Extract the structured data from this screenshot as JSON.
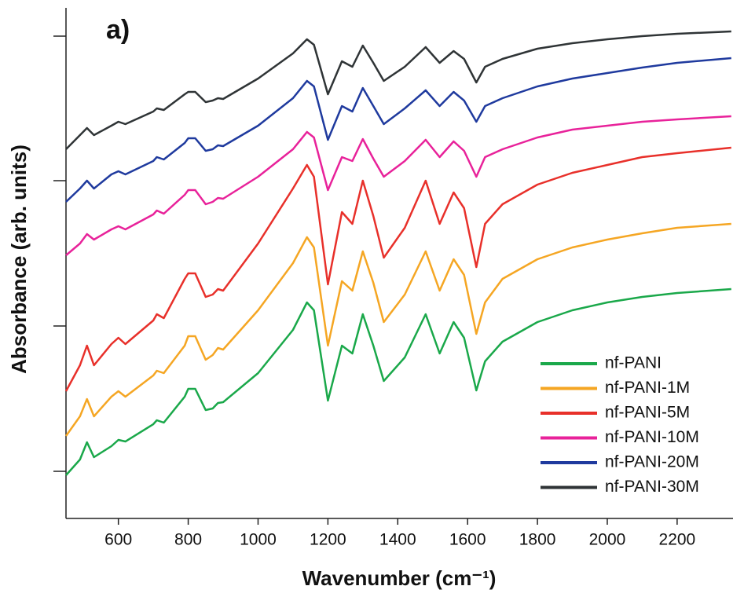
{
  "chart_data": {
    "type": "line",
    "annotation": "a)",
    "x_label": "Wavenumber (cm⁻¹)",
    "y_label": "Absorbance (arb. units)",
    "x": [
      450,
      490,
      510,
      530,
      580,
      600,
      620,
      700,
      710,
      730,
      790,
      800,
      820,
      850,
      870,
      885,
      900,
      1000,
      1100,
      1140,
      1160,
      1200,
      1240,
      1270,
      1300,
      1330,
      1360,
      1420,
      1480,
      1520,
      1560,
      1590,
      1625,
      1650,
      1700,
      1800,
      1900,
      2000,
      2100,
      2200,
      2355
    ],
    "series": [
      {
        "name": "nf-PANI",
        "color": "#1aa84a",
        "values": [
          55,
          75,
          97,
          78,
          92,
          100,
          98,
          120,
          125,
          122,
          155,
          165,
          165,
          138,
          140,
          147,
          148,
          185,
          240,
          275,
          265,
          150,
          220,
          210,
          260,
          220,
          175,
          205,
          260,
          210,
          250,
          230,
          163,
          200,
          225,
          250,
          265,
          275,
          282,
          287,
          292
        ]
      },
      {
        "name": "nf-PANI-1M",
        "color": "#f5a623",
        "values": [
          105,
          130,
          152,
          130,
          155,
          162,
          155,
          182,
          188,
          185,
          220,
          232,
          232,
          202,
          208,
          217,
          215,
          265,
          325,
          358,
          345,
          220,
          302,
          290,
          340,
          300,
          250,
          285,
          340,
          290,
          330,
          310,
          235,
          275,
          305,
          330,
          345,
          355,
          363,
          370,
          375
        ]
      },
      {
        "name": "nf-PANI-5M",
        "color": "#e8302a",
        "values": [
          162,
          195,
          220,
          195,
          222,
          230,
          222,
          252,
          260,
          255,
          305,
          312,
          312,
          282,
          285,
          292,
          290,
          350,
          420,
          450,
          435,
          298,
          390,
          375,
          430,
          385,
          332,
          370,
          430,
          375,
          415,
          395,
          320,
          375,
          400,
          425,
          440,
          450,
          460,
          465,
          472
        ]
      },
      {
        "name": "nf-PANI-10M",
        "color": "#e8229a",
        "values": [
          335,
          350,
          362,
          355,
          368,
          372,
          368,
          387,
          392,
          388,
          412,
          418,
          418,
          400,
          403,
          408,
          407,
          435,
          470,
          492,
          485,
          418,
          460,
          455,
          483,
          458,
          435,
          455,
          482,
          460,
          480,
          468,
          435,
          460,
          470,
          485,
          495,
          500,
          505,
          508,
          512
        ]
      },
      {
        "name": "nf-PANI-20M",
        "color": "#1f3a9e",
        "values": [
          403,
          420,
          430,
          420,
          438,
          442,
          438,
          455,
          460,
          457,
          478,
          484,
          484,
          468,
          470,
          475,
          474,
          500,
          535,
          557,
          550,
          482,
          525,
          518,
          548,
          525,
          502,
          522,
          545,
          525,
          543,
          532,
          505,
          525,
          535,
          550,
          560,
          567,
          574,
          580,
          586
        ]
      },
      {
        "name": "nf-PANI-30M",
        "color": "#2f3436",
        "values": [
          470,
          488,
          497,
          488,
          500,
          505,
          502,
          518,
          522,
          520,
          540,
          543,
          543,
          530,
          532,
          535,
          534,
          560,
          592,
          610,
          603,
          540,
          582,
          575,
          602,
          580,
          557,
          575,
          600,
          580,
          595,
          585,
          555,
          575,
          585,
          598,
          605,
          610,
          614,
          617,
          620
        ]
      }
    ],
    "xlim": [
      450,
      2360
    ],
    "xticks": [
      600,
      800,
      1000,
      1200,
      1400,
      1600,
      1800,
      2000,
      2200
    ],
    "ylim": [
      0,
      650
    ],
    "yticks": [
      60,
      152,
      245,
      338,
      430,
      522,
      614
    ],
    "legend": "lower right"
  }
}
